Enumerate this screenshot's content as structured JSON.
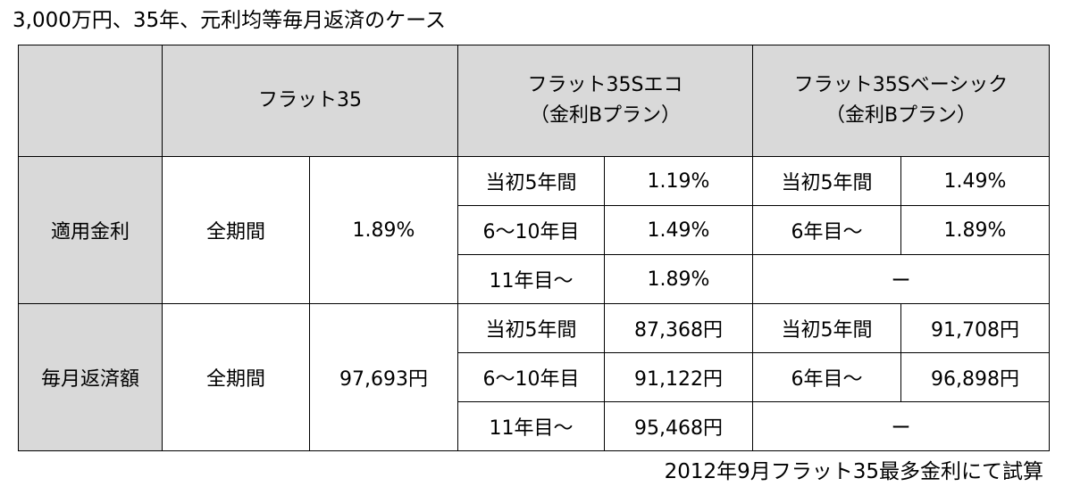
{
  "title": "3,000万円、35年、元利均等毎月返済のケース",
  "header": {
    "corner": "",
    "plans": [
      {
        "name": "フラット35",
        "sub": ""
      },
      {
        "name": "フラット35Sエコ",
        "sub": "（金利Bプラン）"
      },
      {
        "name": "フラット35Sベーシック",
        "sub": "（金利Bプラン）"
      }
    ]
  },
  "rate_section": {
    "label": "適用金利",
    "flat35": {
      "period": "全期間",
      "value": "1.89%"
    },
    "eco": [
      {
        "period": "当初5年間",
        "value": "1.19%"
      },
      {
        "period": "6～10年目",
        "value": "1.49%"
      },
      {
        "period": "11年目～",
        "value": "1.89%"
      }
    ],
    "basic": [
      {
        "period": "当初5年間",
        "value": "1.49%"
      },
      {
        "period": "6年目～",
        "value": "1.89%"
      }
    ],
    "basic_na": "ー"
  },
  "payment_section": {
    "label": "毎月返済額",
    "flat35": {
      "period": "全期間",
      "value": "97,693円"
    },
    "eco": [
      {
        "period": "当初5年間",
        "value": "87,368円"
      },
      {
        "period": "6～10年目",
        "value": "91,122円"
      },
      {
        "period": "11年目～",
        "value": "95,468円"
      }
    ],
    "basic": [
      {
        "period": "当初5年間",
        "value": "91,708円"
      },
      {
        "period": "6年目～",
        "value": "96,898円"
      }
    ],
    "basic_na": "ー"
  },
  "footnote": "2012年9月フラット35最多金利にて試算",
  "colors": {
    "header_bg": "#d9d9d9",
    "border": "#000000",
    "text": "#000000"
  }
}
